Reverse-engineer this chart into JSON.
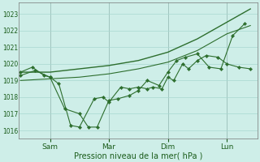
{
  "background_color": "#ceeee8",
  "grid_color": "#a8d8d0",
  "line_color": "#2d6e2d",
  "marker_color": "#2d6e2d",
  "xlabel": "Pression niveau de la mer( hPa )",
  "ylim": [
    1015.5,
    1023.7
  ],
  "yticks": [
    1016,
    1017,
    1018,
    1019,
    1020,
    1021,
    1022,
    1023
  ],
  "xlim": [
    -0.05,
    8.05
  ],
  "vline_positions": [
    1,
    3,
    5,
    7
  ],
  "xtick_positions": [
    1,
    3,
    5,
    7
  ],
  "xtick_labels": [
    "Sam",
    "Mar",
    "Dim",
    "Lun"
  ],
  "series": [
    {
      "x": [
        0,
        1,
        2,
        3,
        4,
        5,
        6,
        7,
        7.8
      ],
      "y": [
        1019.5,
        1019.5,
        1019.7,
        1019.9,
        1020.2,
        1020.7,
        1021.5,
        1022.5,
        1023.3
      ],
      "has_markers": false,
      "linewidth": 1.0
    },
    {
      "x": [
        0,
        1,
        2,
        3,
        4,
        5,
        6,
        7,
        7.8
      ],
      "y": [
        1019.0,
        1019.1,
        1019.2,
        1019.4,
        1019.7,
        1020.1,
        1020.8,
        1021.8,
        1022.3
      ],
      "has_markers": false,
      "linewidth": 0.8
    },
    {
      "x": [
        0.0,
        0.4,
        0.8,
        1.0,
        1.3,
        1.7,
        2.0,
        2.5,
        2.8,
        3.0,
        3.4,
        3.7,
        4.0,
        4.3,
        4.5,
        4.8,
        5.0,
        5.2,
        5.5,
        5.7,
        6.0,
        6.3,
        6.7,
        7.0,
        7.4,
        7.8
      ],
      "y": [
        1019.5,
        1019.8,
        1019.3,
        1019.2,
        1018.8,
        1016.3,
        1016.2,
        1017.9,
        1018.0,
        1017.7,
        1018.6,
        1018.5,
        1018.6,
        1018.5,
        1018.6,
        1018.5,
        1019.2,
        1019.0,
        1020.0,
        1019.7,
        1020.2,
        1020.5,
        1020.4,
        1020.0,
        1019.8,
        1019.7
      ],
      "has_markers": true,
      "linewidth": 0.8
    },
    {
      "x": [
        0.0,
        0.5,
        1.0,
        1.5,
        2.0,
        2.3,
        2.6,
        3.0,
        3.3,
        3.7,
        4.0,
        4.3,
        4.7,
        5.0,
        5.3,
        5.6,
        6.0,
        6.4,
        6.8,
        7.2,
        7.6
      ],
      "y": [
        1019.3,
        1019.6,
        1019.2,
        1017.3,
        1017.0,
        1016.2,
        1016.2,
        1017.8,
        1017.9,
        1018.1,
        1018.4,
        1019.0,
        1018.7,
        1019.5,
        1020.2,
        1020.4,
        1020.6,
        1019.8,
        1019.7,
        1021.7,
        1022.4
      ],
      "has_markers": true,
      "linewidth": 0.8
    }
  ]
}
